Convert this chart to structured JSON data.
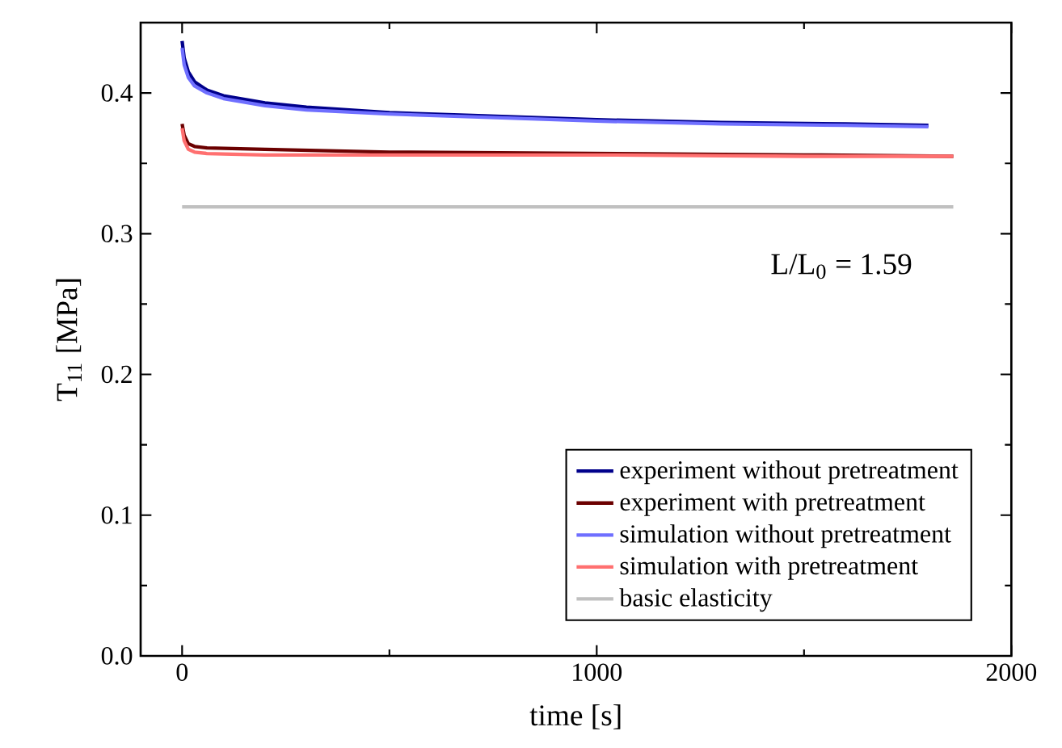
{
  "chart_data": {
    "type": "line",
    "xlabel": "time [s]",
    "ylabel": "T$_{11}$ [MPa]",
    "xlim": [
      -100,
      2000
    ],
    "ylim": [
      0,
      0.45
    ],
    "xticks": [
      0,
      {
        "value": 500,
        "label": null
      },
      1000,
      {
        "value": 1500,
        "label": null
      },
      2000
    ],
    "yticks": [
      {
        "value": 0,
        "label": "0.0"
      },
      {
        "value": 0.05,
        "label": null
      },
      0.1,
      {
        "value": 0.15,
        "label": null
      },
      0.2,
      {
        "value": 0.25,
        "label": null
      },
      0.3,
      {
        "value": 0.35,
        "label": null
      },
      0.4
    ],
    "annotations": [
      "L/L$_{0}$ = 1.59"
    ],
    "legend": "bottom right",
    "grid": false,
    "marker": "none",
    "line_style": "solid",
    "series": [
      {
        "name": "experiment without pretreatment",
        "color": "#00008b",
        "x": [
          0,
          5,
          15,
          30,
          60,
          100,
          200,
          300,
          500,
          700,
          1000,
          1300,
          1600,
          1800
        ],
        "values": [
          0.437,
          0.425,
          0.415,
          0.408,
          0.402,
          0.398,
          0.393,
          0.39,
          0.386,
          0.384,
          0.381,
          0.379,
          0.378,
          0.377
        ]
      },
      {
        "name": "experiment with pretreatment",
        "color": "#6b0000",
        "x": [
          0,
          5,
          15,
          30,
          60,
          200,
          500,
          1000,
          1500,
          1860
        ],
        "values": [
          0.378,
          0.37,
          0.364,
          0.362,
          0.361,
          0.36,
          0.358,
          0.357,
          0.356,
          0.355
        ]
      },
      {
        "name": "simulation without pretreatment",
        "color": "#6f6fff",
        "x": [
          0,
          5,
          15,
          30,
          60,
          100,
          200,
          300,
          500,
          700,
          1000,
          1300,
          1600,
          1800
        ],
        "values": [
          0.432,
          0.42,
          0.411,
          0.405,
          0.4,
          0.396,
          0.391,
          0.388,
          0.385,
          0.383,
          0.38,
          0.378,
          0.377,
          0.376
        ]
      },
      {
        "name": "simulation with pretreatment",
        "color": "#ff7070",
        "x": [
          0,
          5,
          15,
          30,
          60,
          200,
          500,
          1000,
          1500,
          1860
        ],
        "values": [
          0.375,
          0.366,
          0.36,
          0.358,
          0.357,
          0.356,
          0.356,
          0.356,
          0.355,
          0.355
        ]
      },
      {
        "name": "basic elasticity",
        "color": "#c0c0c0",
        "x": [
          0,
          1860
        ],
        "values": [
          0.319,
          0.319
        ]
      }
    ]
  }
}
